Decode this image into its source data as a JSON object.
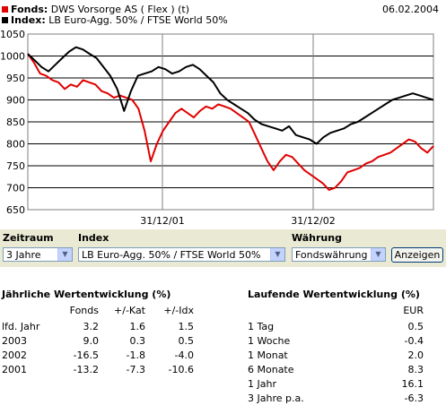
{
  "header": {
    "fund_label": "Fonds:",
    "fund_name": "DWS Vorsorge AS ( Flex ) (t)",
    "index_label": "Index:",
    "index_name": "LB Euro-Agg. 50% / FTSE World 50%",
    "date": "06.02.2004",
    "fund_color": "#e00000",
    "index_color": "#000000"
  },
  "chart_data": {
    "type": "line",
    "yticks": [
      "1050",
      "1000",
      "950",
      "900",
      "850",
      "800",
      "750",
      "700",
      "650"
    ],
    "ylim": [
      650,
      1050
    ],
    "xticks": [
      "31/12/01",
      "31/12/02"
    ],
    "grid": true,
    "series": [
      {
        "name": "Fonds",
        "color": "#e00000",
        "values": [
          1005,
          985,
          960,
          955,
          945,
          940,
          925,
          935,
          930,
          945,
          940,
          935,
          920,
          915,
          905,
          910,
          905,
          900,
          880,
          830,
          760,
          800,
          830,
          850,
          870,
          880,
          870,
          860,
          875,
          885,
          880,
          890,
          885,
          880,
          870,
          860,
          850,
          820,
          790,
          760,
          740,
          760,
          775,
          770,
          755,
          740,
          730,
          720,
          710,
          695,
          700,
          715,
          735,
          740,
          745,
          755,
          760,
          770,
          775,
          780,
          790,
          800,
          810,
          805,
          790,
          780,
          795
        ]
      },
      {
        "name": "Index",
        "color": "#000000",
        "values": [
          1005,
          990,
          975,
          965,
          980,
          995,
          1010,
          1020,
          1015,
          1005,
          995,
          975,
          955,
          925,
          875,
          920,
          955,
          960,
          965,
          975,
          970,
          960,
          965,
          975,
          980,
          970,
          955,
          940,
          915,
          900,
          890,
          880,
          870,
          855,
          845,
          840,
          835,
          830,
          840,
          820,
          815,
          810,
          800,
          815,
          825,
          830,
          835,
          845,
          850,
          860,
          870,
          880,
          890,
          900,
          905,
          910,
          915,
          910,
          905,
          900
        ]
      }
    ]
  },
  "controls": {
    "zeitraum_label": "Zeitraum",
    "zeitraum_value": "3 Jahre",
    "index_label": "Index",
    "index_value": "LB Euro-Agg. 50% / FTSE World 50%",
    "waehrung_label": "Währung",
    "waehrung_value": "Fondswährung",
    "submit_label": "Anzeigen"
  },
  "annual": {
    "title": "Jährliche Wertentwicklung (%)",
    "headers": [
      "Fonds",
      "+/-Kat",
      "+/-Idx"
    ],
    "rows": [
      {
        "label": "lfd. Jahr",
        "values": [
          "3.2",
          "1.6",
          "1.5"
        ]
      },
      {
        "label": "2003",
        "values": [
          "9.0",
          "0.3",
          "0.5"
        ]
      },
      {
        "label": "2002",
        "values": [
          "-16.5",
          "-1.8",
          "-4.0"
        ]
      },
      {
        "label": "2001",
        "values": [
          "-13.2",
          "-7.3",
          "-10.6"
        ]
      }
    ]
  },
  "running": {
    "title": "Laufende Wertentwicklung (%)",
    "header": "EUR",
    "rows": [
      {
        "label": "1 Tag",
        "value": "0.5"
      },
      {
        "label": "1 Woche",
        "value": "-0.4"
      },
      {
        "label": "1 Monat",
        "value": "2.0"
      },
      {
        "label": "6 Monate",
        "value": "8.3"
      },
      {
        "label": "1 Jahr",
        "value": "16.1"
      },
      {
        "label": "3 Jahre p.a.",
        "value": "-6.3"
      }
    ]
  }
}
